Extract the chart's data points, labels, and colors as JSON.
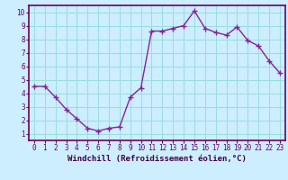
{
  "x": [
    0,
    1,
    2,
    3,
    4,
    5,
    6,
    7,
    8,
    9,
    10,
    11,
    12,
    13,
    14,
    15,
    16,
    17,
    18,
    19,
    20,
    21,
    22,
    23
  ],
  "y": [
    4.5,
    4.5,
    3.7,
    2.8,
    2.1,
    1.4,
    1.2,
    1.4,
    1.5,
    3.7,
    4.4,
    8.6,
    8.6,
    8.8,
    9.0,
    10.1,
    8.8,
    8.5,
    8.3,
    8.9,
    7.9,
    7.5,
    6.4,
    5.5
  ],
  "xlabel": "Windchill (Refroidissement éolien,°C)",
  "yticks": [
    1,
    2,
    3,
    4,
    5,
    6,
    7,
    8,
    9,
    10
  ],
  "xticks": [
    0,
    1,
    2,
    3,
    4,
    5,
    6,
    7,
    8,
    9,
    10,
    11,
    12,
    13,
    14,
    15,
    16,
    17,
    18,
    19,
    20,
    21,
    22,
    23
  ],
  "line_color": "#882299",
  "marker": "+",
  "bg_color": "#cceeff",
  "grid_color": "#99dddd",
  "axis_color": "#660066",
  "tick_label_color": "#660066",
  "xlabel_color": "#440044",
  "linewidth": 1.0,
  "markersize": 4,
  "xlim_min": -0.5,
  "xlim_max": 23.5,
  "ylim_min": 0.5,
  "ylim_max": 10.5,
  "tick_fontsize": 5.5,
  "xlabel_fontsize": 6.5
}
